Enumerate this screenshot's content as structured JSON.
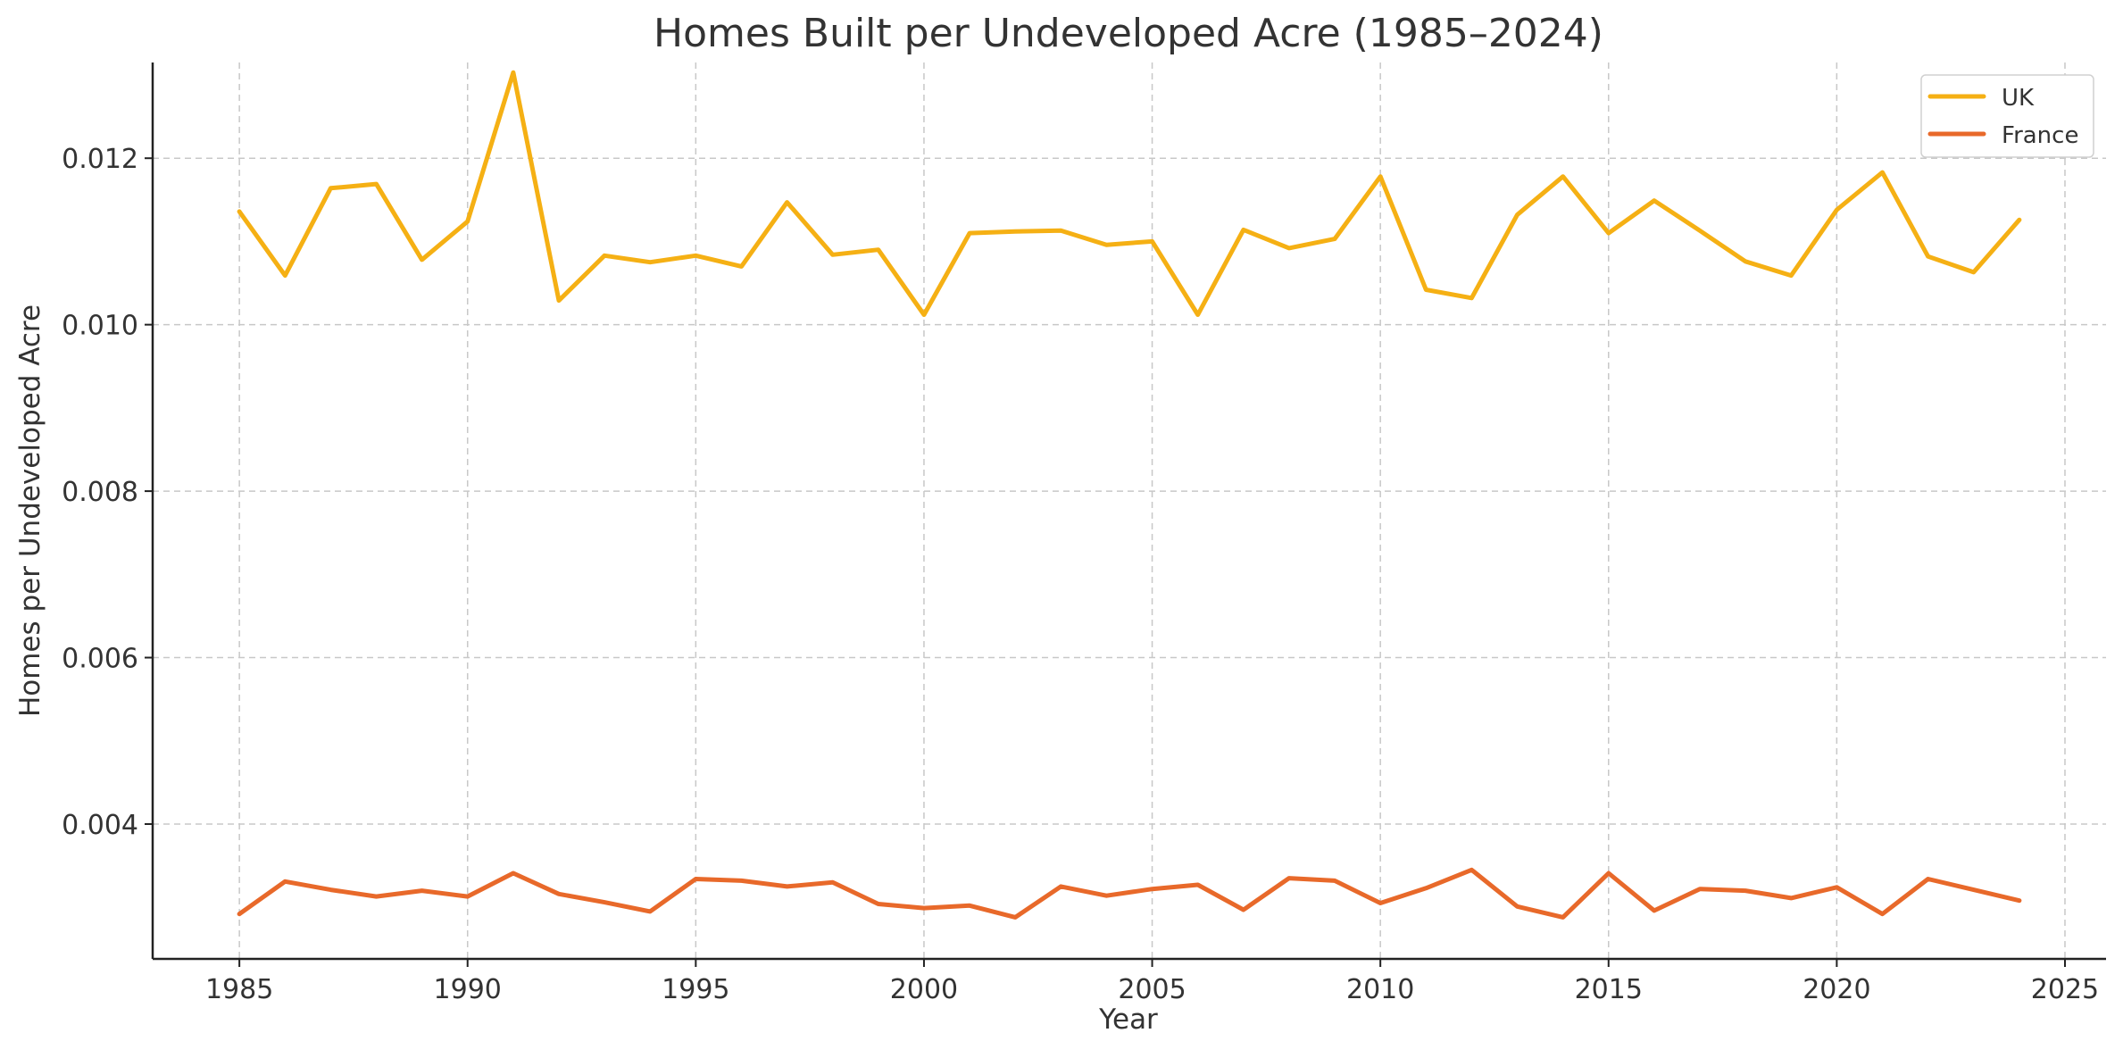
{
  "chart_data": {
    "type": "line",
    "title": "Homes Built per Undeveloped Acre (1985–2024)",
    "xlabel": "Year",
    "ylabel": "Homes per Undeveloped Acre",
    "xlim": [
      1983.1,
      2025.9
    ],
    "ylim": [
      0.00238,
      0.01315
    ],
    "x_ticks": [
      1985,
      1990,
      1995,
      2000,
      2005,
      2010,
      2015,
      2020,
      2025
    ],
    "y_ticks": [
      0.004,
      0.006,
      0.008,
      0.01,
      0.012
    ],
    "y_tick_labels": [
      "0.004",
      "0.006",
      "0.008",
      "0.010",
      "0.012"
    ],
    "grid": true,
    "legend_position": "top-right",
    "x": [
      1985,
      1986,
      1987,
      1988,
      1989,
      1990,
      1991,
      1992,
      1993,
      1994,
      1995,
      1996,
      1997,
      1998,
      1999,
      2000,
      2001,
      2002,
      2003,
      2004,
      2005,
      2006,
      2007,
      2008,
      2009,
      2010,
      2011,
      2012,
      2013,
      2014,
      2015,
      2016,
      2017,
      2018,
      2019,
      2020,
      2021,
      2022,
      2023,
      2024
    ],
    "series": [
      {
        "name": "UK",
        "color": "#F5B014",
        "values": [
          0.01136,
          0.01059,
          0.01164,
          0.01169,
          0.01078,
          0.01124,
          0.01303,
          0.01029,
          0.01083,
          0.01075,
          0.01083,
          0.0107,
          0.01147,
          0.01084,
          0.0109,
          0.01012,
          0.0111,
          0.01112,
          0.01113,
          0.01096,
          0.011,
          0.01012,
          0.01114,
          0.01092,
          0.01103,
          0.01178,
          0.01042,
          0.01032,
          0.01132,
          0.01178,
          0.0111,
          0.01149,
          0.01113,
          0.01076,
          0.01059,
          0.01138,
          0.01183,
          0.01082,
          0.01063,
          0.01126
        ]
      },
      {
        "name": "France",
        "color": "#E8692A",
        "values": [
          0.00292,
          0.00331,
          0.00321,
          0.00313,
          0.0032,
          0.00313,
          0.00341,
          0.00316,
          0.00306,
          0.00295,
          0.00334,
          0.00332,
          0.00325,
          0.0033,
          0.00304,
          0.00299,
          0.00302,
          0.00288,
          0.00325,
          0.00314,
          0.00322,
          0.00327,
          0.00297,
          0.00335,
          0.00332,
          0.00305,
          0.00323,
          0.00345,
          0.00301,
          0.00288,
          0.00341,
          0.00296,
          0.00322,
          0.0032,
          0.00311,
          0.00324,
          0.00292,
          0.00334,
          0.00321,
          0.00308
        ]
      }
    ]
  }
}
